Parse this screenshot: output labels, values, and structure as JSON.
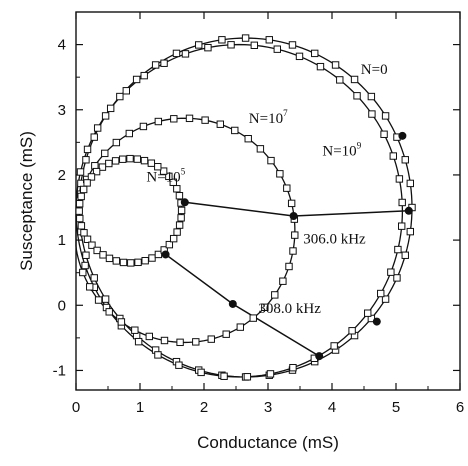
{
  "chart_data": {
    "type": "scatter",
    "title": "",
    "xlabel": "Conductance (mS)",
    "ylabel": "Susceptance (mS)",
    "xlim": [
      0,
      6
    ],
    "ylim": [
      -1.3,
      4.5
    ],
    "xticks": [
      0,
      1,
      2,
      3,
      4,
      5,
      6
    ],
    "yticks": [
      -1,
      0,
      1,
      2,
      3,
      4
    ],
    "grid": false,
    "legend": "none",
    "marker": "open-square",
    "colors": {
      "line": "#111111",
      "marker": "#111111",
      "background": "#ffffff"
    },
    "series": [
      {
        "label_prefix": "N=",
        "label_exp": "0",
        "label_base": "0",
        "center": [
          2.65,
          1.5
        ],
        "radius": 2.6
      },
      {
        "label_prefix": "N=",
        "label_exp": "9",
        "label_base": "10",
        "center": [
          2.55,
          1.45
        ],
        "radius": 2.55
      },
      {
        "label_prefix": "N=",
        "label_exp": "7",
        "label_base": "10",
        "center": [
          1.7,
          1.15
        ],
        "radius": 1.72
      },
      {
        "label_prefix": "N=",
        "label_exp": "5",
        "label_base": "10",
        "center": [
          0.85,
          1.45
        ],
        "radius": 0.8
      }
    ],
    "frequency_lines": [
      {
        "label": "306.0 kHz",
        "points": [
          [
            1.7,
            1.58
          ],
          [
            3.4,
            1.37
          ],
          [
            5.2,
            1.45
          ]
        ]
      },
      {
        "label": "308.0 kHz",
        "points": [
          [
            1.4,
            0.78
          ],
          [
            2.45,
            0.02
          ],
          [
            3.8,
            -0.78
          ]
        ]
      }
    ],
    "highlighted_points": [
      [
        1.7,
        1.58
      ],
      [
        3.4,
        1.37
      ],
      [
        5.2,
        1.45
      ],
      [
        5.1,
        2.6
      ],
      [
        1.4,
        0.78
      ],
      [
        2.45,
        0.02
      ],
      [
        3.8,
        -0.78
      ],
      [
        4.7,
        -0.25
      ]
    ],
    "annotations": [
      {
        "text": "306.0 kHz",
        "x": 3.55,
        "y": 0.95
      },
      {
        "text": "308.0 kHz",
        "x": 2.85,
        "y": -0.12
      }
    ],
    "series_labels": [
      {
        "base": "N=0",
        "exp": "",
        "x": 4.45,
        "y": 3.55
      },
      {
        "base": "N=10",
        "exp": "7",
        "x": 2.7,
        "y": 2.8
      },
      {
        "base": "N=10",
        "exp": "9",
        "x": 3.85,
        "y": 2.3
      },
      {
        "base": "N=10",
        "exp": "5",
        "x": 1.1,
        "y": 1.9
      }
    ]
  }
}
